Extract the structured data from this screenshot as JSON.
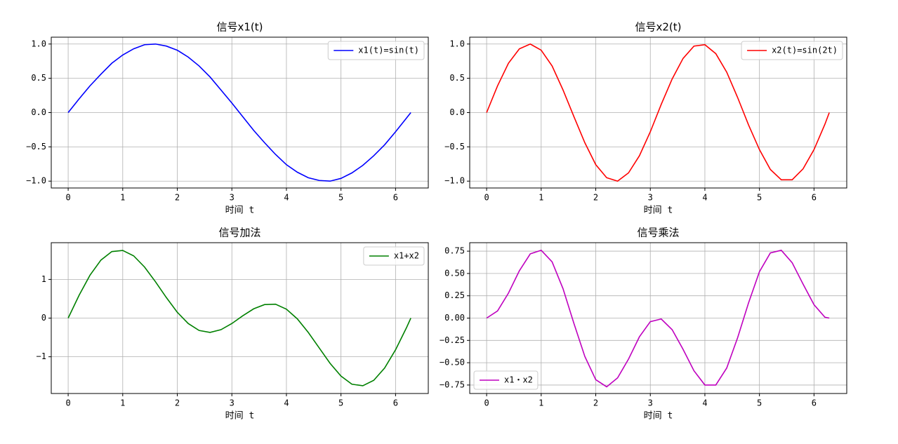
{
  "chart_data": [
    {
      "type": "line",
      "title": "信号x1(t)",
      "xlabel": "时间 t",
      "x": [
        0,
        0.2,
        0.4,
        0.6,
        0.8,
        1.0,
        1.2,
        1.4,
        1.6,
        1.8,
        2.0,
        2.2,
        2.4,
        2.6,
        2.8,
        3.0,
        3.2,
        3.4,
        3.6,
        3.8,
        4.0,
        4.2,
        4.4,
        4.6,
        4.8,
        5.0,
        5.2,
        5.4,
        5.6,
        5.8,
        6.0,
        6.2,
        6.28
      ],
      "series": [
        {
          "name": "x1(t)=sin(t)",
          "color": "#0000ff",
          "values": [
            0,
            0.2,
            0.39,
            0.56,
            0.72,
            0.84,
            0.93,
            0.99,
            1.0,
            0.97,
            0.91,
            0.81,
            0.68,
            0.52,
            0.33,
            0.14,
            -0.06,
            -0.26,
            -0.44,
            -0.61,
            -0.76,
            -0.87,
            -0.95,
            -0.99,
            -1.0,
            -0.96,
            -0.88,
            -0.77,
            -0.63,
            -0.47,
            -0.28,
            -0.08,
            0
          ]
        }
      ],
      "xlim": [
        -0.31,
        6.6
      ],
      "ylim": [
        -1.1,
        1.1
      ],
      "xticks": [
        0,
        1,
        2,
        3,
        4,
        5,
        6
      ],
      "yticks": [
        {
          "value": -1,
          "label": "−1.0"
        },
        {
          "value": -0.5,
          "label": "−0.5"
        },
        {
          "value": 0,
          "label": "0.0"
        },
        0.5,
        {
          "value": 1,
          "label": "1.0"
        }
      ],
      "grid": true,
      "legend": "upper right"
    },
    {
      "type": "line",
      "title": "信号x2(t)",
      "xlabel": "时间 t",
      "x": [
        0,
        0.2,
        0.4,
        0.6,
        0.8,
        1.0,
        1.2,
        1.4,
        1.6,
        1.8,
        2.0,
        2.2,
        2.4,
        2.6,
        2.8,
        3.0,
        3.2,
        3.4,
        3.6,
        3.8,
        4.0,
        4.2,
        4.4,
        4.6,
        4.8,
        5.0,
        5.2,
        5.4,
        5.6,
        5.8,
        6.0,
        6.2,
        6.28
      ],
      "series": [
        {
          "name": "x2(t)=sin(2t)",
          "color": "#ff0000",
          "values": [
            0,
            0.39,
            0.72,
            0.93,
            1.0,
            0.91,
            0.68,
            0.33,
            -0.06,
            -0.44,
            -0.76,
            -0.95,
            -1.0,
            -0.88,
            -0.63,
            -0.28,
            0.12,
            0.49,
            0.79,
            0.97,
            0.99,
            0.86,
            0.59,
            0.22,
            -0.18,
            -0.54,
            -0.83,
            -0.98,
            -0.98,
            -0.82,
            -0.54,
            -0.17,
            0
          ]
        }
      ],
      "xlim": [
        -0.31,
        6.6
      ],
      "ylim": [
        -1.1,
        1.1
      ],
      "xticks": [
        0,
        1,
        2,
        3,
        4,
        5,
        6
      ],
      "yticks": [
        {
          "value": -1,
          "label": "−1.0"
        },
        {
          "value": -0.5,
          "label": "−0.5"
        },
        {
          "value": 0,
          "label": "0.0"
        },
        0.5,
        {
          "value": 1,
          "label": "1.0"
        }
      ],
      "grid": true,
      "legend": "upper right"
    },
    {
      "type": "line",
      "title": "信号加法",
      "xlabel": "时间 t",
      "x": [
        0,
        0.2,
        0.4,
        0.6,
        0.8,
        1.0,
        1.2,
        1.4,
        1.6,
        1.8,
        2.0,
        2.2,
        2.4,
        2.6,
        2.8,
        3.0,
        3.2,
        3.4,
        3.6,
        3.8,
        4.0,
        4.2,
        4.4,
        4.6,
        4.8,
        5.0,
        5.2,
        5.4,
        5.6,
        5.8,
        6.0,
        6.2,
        6.28
      ],
      "series": [
        {
          "name": "x1+x2",
          "color": "#008000",
          "values": [
            0,
            0.59,
            1.11,
            1.5,
            1.72,
            1.75,
            1.61,
            1.32,
            0.94,
            0.53,
            0.15,
            -0.14,
            -0.32,
            -0.37,
            -0.3,
            -0.14,
            0.06,
            0.24,
            0.35,
            0.36,
            0.23,
            -0.02,
            -0.37,
            -0.77,
            -1.17,
            -1.5,
            -1.71,
            -1.75,
            -1.61,
            -1.29,
            -0.82,
            -0.25,
            0
          ]
        }
      ],
      "xlim": [
        -0.31,
        6.6
      ],
      "ylim": [
        -1.95,
        1.95
      ],
      "xticks": [
        0,
        1,
        2,
        3,
        4,
        5,
        6
      ],
      "yticks": [
        {
          "value": -1,
          "label": "−1"
        },
        0,
        1
      ],
      "grid": true,
      "legend": "upper right"
    },
    {
      "type": "line",
      "title": "信号乘法",
      "xlabel": "时间 t",
      "x": [
        0,
        0.2,
        0.4,
        0.6,
        0.8,
        1.0,
        1.2,
        1.4,
        1.6,
        1.8,
        2.0,
        2.2,
        2.4,
        2.6,
        2.8,
        3.0,
        3.2,
        3.4,
        3.6,
        3.8,
        4.0,
        4.2,
        4.4,
        4.6,
        4.8,
        5.0,
        5.2,
        5.4,
        5.6,
        5.8,
        6.0,
        6.2,
        6.28
      ],
      "series": [
        {
          "name": "x1・x2",
          "color": "#bf00bf",
          "values": [
            0,
            0.08,
            0.28,
            0.53,
            0.72,
            0.76,
            0.63,
            0.33,
            -0.06,
            -0.43,
            -0.69,
            -0.77,
            -0.67,
            -0.46,
            -0.21,
            -0.04,
            -0.01,
            -0.13,
            -0.35,
            -0.59,
            -0.75,
            -0.75,
            -0.56,
            -0.22,
            0.17,
            0.52,
            0.73,
            0.76,
            0.62,
            0.38,
            0.15,
            0.01,
            0
          ]
        }
      ],
      "xlim": [
        -0.31,
        6.6
      ],
      "ylim": [
        -0.845,
        0.845
      ],
      "xticks": [
        0,
        1,
        2,
        3,
        4,
        5,
        6
      ],
      "yticks": [
        {
          "value": -0.75,
          "label": "−0.75"
        },
        {
          "value": -0.5,
          "label": "−0.50"
        },
        {
          "value": -0.25,
          "label": "−0.25"
        },
        {
          "value": 0,
          "label": "0.00"
        },
        0.25,
        {
          "value": 0.5,
          "label": "0.50"
        },
        0.75
      ],
      "grid": true,
      "legend": "lower left"
    }
  ]
}
